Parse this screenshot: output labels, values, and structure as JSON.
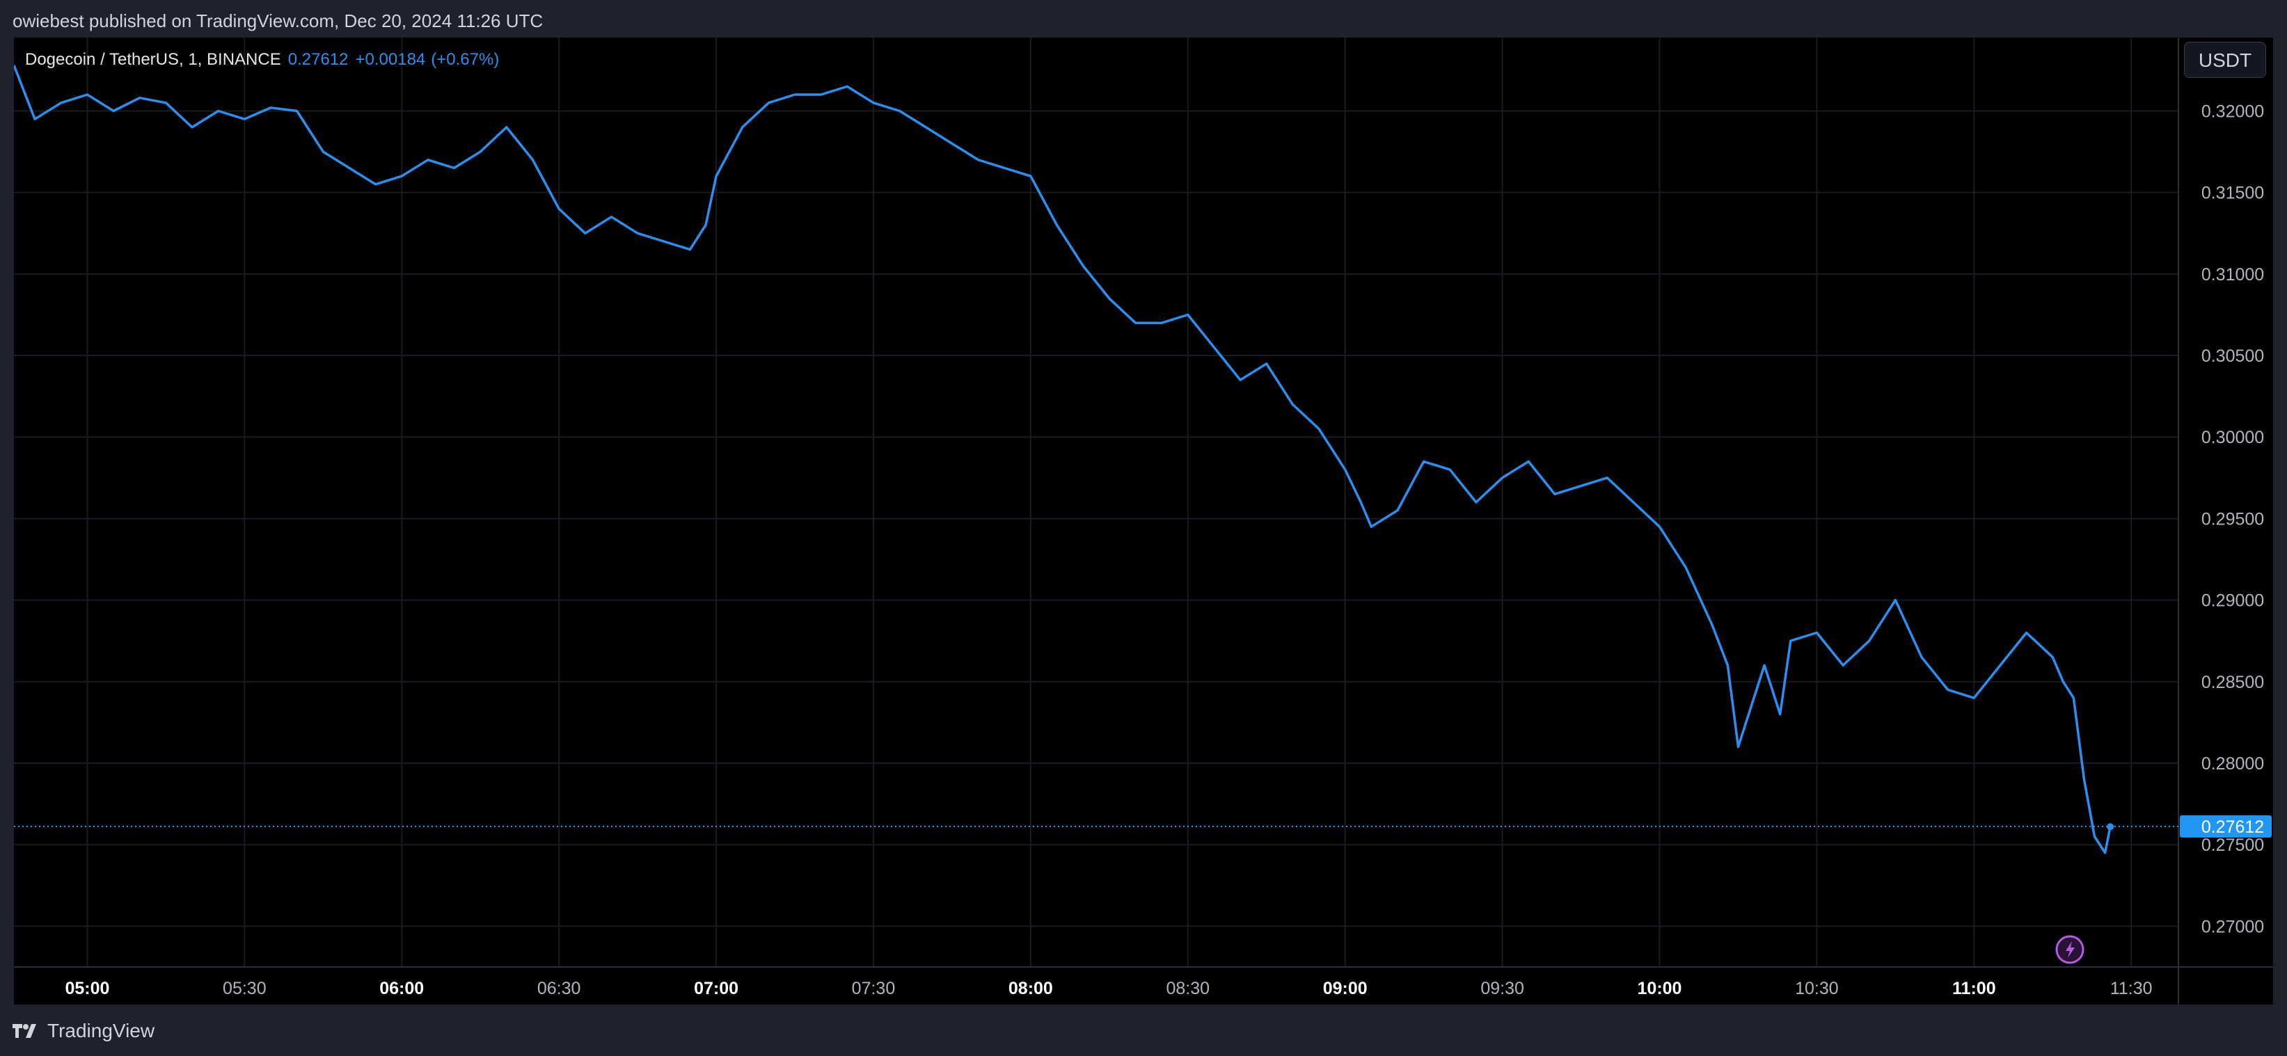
{
  "header": {
    "publisher_line": "owiebest published on TradingView.com, Dec 20, 2024 11:26 UTC"
  },
  "legend": {
    "symbol": "Dogecoin / TetherUS, 1, BINANCE",
    "last": "0.27612",
    "change": "+0.00184",
    "change_pct": "(+0.67%)"
  },
  "currency_button": "USDT",
  "footer": {
    "brand": "TradingView"
  },
  "icons": {
    "bolt": "lightning-bolt-icon",
    "brand_logo": "tradingview-logo-icon"
  },
  "colors": {
    "line": "#2b8ff0",
    "last_price_tag": "#2196f3",
    "bolt": "#b45be0",
    "background": "#000000"
  },
  "chart_data": {
    "type": "line",
    "title": "",
    "xlabel": "",
    "ylabel": "",
    "grid": true,
    "ylim": [
      0.2675,
      0.3245
    ],
    "xlim": [
      "04:46",
      "11:39"
    ],
    "y_ticks": [
      "0.27000",
      "0.27500",
      "0.28000",
      "0.28500",
      "0.29000",
      "0.29500",
      "0.30000",
      "0.30500",
      "0.31000",
      "0.31500",
      "0.32000"
    ],
    "x_ticks": [
      {
        "label": "05:00",
        "major": true
      },
      {
        "label": "05:30",
        "major": false
      },
      {
        "label": "06:00",
        "major": true
      },
      {
        "label": "06:30",
        "major": false
      },
      {
        "label": "07:00",
        "major": true
      },
      {
        "label": "07:30",
        "major": false
      },
      {
        "label": "08:00",
        "major": true
      },
      {
        "label": "08:30",
        "major": false
      },
      {
        "label": "09:00",
        "major": true
      },
      {
        "label": "09:30",
        "major": false
      },
      {
        "label": "10:00",
        "major": true
      },
      {
        "label": "10:30",
        "major": false
      },
      {
        "label": "11:00",
        "major": true
      },
      {
        "label": "11:30",
        "major": false
      }
    ],
    "last_price": 0.27612,
    "last_price_label": "0.27612",
    "series": [
      {
        "name": "",
        "x": [
          "04:46",
          "04:50",
          "04:55",
          "05:00",
          "05:05",
          "05:10",
          "05:15",
          "05:20",
          "05:25",
          "05:30",
          "05:35",
          "05:40",
          "05:45",
          "05:50",
          "05:55",
          "06:00",
          "06:05",
          "06:10",
          "06:15",
          "06:20",
          "06:25",
          "06:30",
          "06:35",
          "06:40",
          "06:45",
          "06:50",
          "06:55",
          "06:58",
          "07:00",
          "07:05",
          "07:10",
          "07:15",
          "07:20",
          "07:25",
          "07:30",
          "07:35",
          "07:40",
          "07:45",
          "07:50",
          "07:55",
          "08:00",
          "08:05",
          "08:10",
          "08:15",
          "08:20",
          "08:25",
          "08:30",
          "08:35",
          "08:40",
          "08:45",
          "08:50",
          "08:55",
          "09:00",
          "09:03",
          "09:05",
          "09:10",
          "09:15",
          "09:20",
          "09:25",
          "09:30",
          "09:35",
          "09:40",
          "09:45",
          "09:50",
          "09:55",
          "10:00",
          "10:05",
          "10:10",
          "10:13",
          "10:15",
          "10:20",
          "10:23",
          "10:25",
          "10:30",
          "10:35",
          "10:40",
          "10:45",
          "10:50",
          "10:55",
          "11:00",
          "11:05",
          "11:10",
          "11:15",
          "11:17",
          "11:19",
          "11:21",
          "11:23",
          "11:25",
          "11:26"
        ],
        "y": [
          0.3228,
          0.3195,
          0.3205,
          0.321,
          0.32,
          0.3208,
          0.3205,
          0.319,
          0.32,
          0.3195,
          0.3202,
          0.32,
          0.3175,
          0.3165,
          0.3155,
          0.316,
          0.317,
          0.3165,
          0.3175,
          0.319,
          0.317,
          0.314,
          0.3125,
          0.3135,
          0.3125,
          0.312,
          0.3115,
          0.313,
          0.316,
          0.319,
          0.3205,
          0.321,
          0.321,
          0.3215,
          0.3205,
          0.32,
          0.319,
          0.318,
          0.317,
          0.3165,
          0.316,
          0.313,
          0.3105,
          0.3085,
          0.307,
          0.307,
          0.3075,
          0.3055,
          0.3035,
          0.3045,
          0.302,
          0.3005,
          0.298,
          0.296,
          0.2945,
          0.2955,
          0.2985,
          0.298,
          0.296,
          0.2975,
          0.2985,
          0.2965,
          0.297,
          0.2975,
          0.296,
          0.2945,
          0.292,
          0.2885,
          0.286,
          0.281,
          0.286,
          0.283,
          0.2875,
          0.288,
          0.286,
          0.2875,
          0.29,
          0.2865,
          0.2845,
          0.284,
          0.286,
          0.288,
          0.2865,
          0.285,
          0.284,
          0.279,
          0.2755,
          0.2745,
          0.2761
        ]
      }
    ]
  }
}
